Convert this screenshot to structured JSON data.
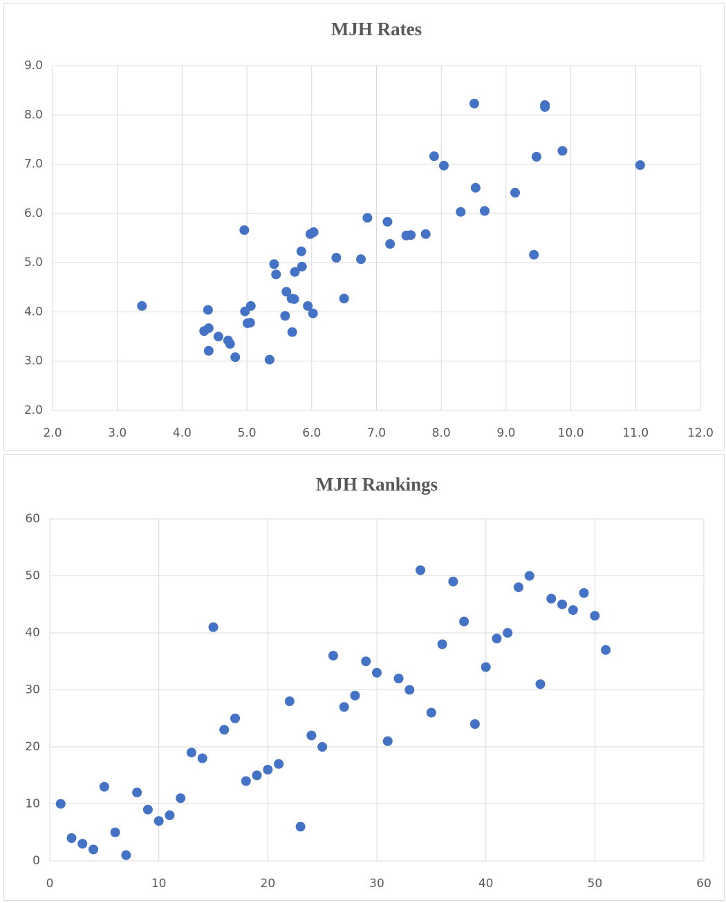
{
  "chart_data": [
    {
      "type": "scatter",
      "title": "MJH Rates",
      "color": "#4472c4",
      "grid": true,
      "xlim": [
        2,
        12
      ],
      "xticks": [
        {
          "value": 2,
          "label": "2.0"
        },
        {
          "value": 3,
          "label": "3.0"
        },
        {
          "value": 4,
          "label": "4.0"
        },
        {
          "value": 5,
          "label": "5.0"
        },
        {
          "value": 6,
          "label": "6.0"
        },
        {
          "value": 7,
          "label": "7.0"
        },
        {
          "value": 8,
          "label": "8.0"
        },
        {
          "value": 9,
          "label": "9.0"
        },
        {
          "value": 10,
          "label": "10.0"
        },
        {
          "value": 11,
          "label": "11.0"
        },
        {
          "value": 12,
          "label": "12.0"
        }
      ],
      "ylim": [
        2,
        9
      ],
      "yticks": [
        {
          "value": 2,
          "label": "2.0"
        },
        {
          "value": 3,
          "label": "3.0"
        },
        {
          "value": 4,
          "label": "4.0"
        },
        {
          "value": 5,
          "label": "5.0"
        },
        {
          "value": 6,
          "label": "6.0"
        },
        {
          "value": 7,
          "label": "7.0"
        },
        {
          "value": 8,
          "label": "8.0"
        },
        {
          "value": 9,
          "label": "9.0"
        }
      ],
      "x": [
        3.38,
        4.4,
        4.34,
        4.41,
        4.41,
        4.56,
        4.71,
        4.74,
        4.82,
        4.96,
        4.97,
        5.01,
        5.05,
        5.06,
        5.35,
        5.42,
        5.45,
        5.59,
        5.61,
        5.69,
        5.73,
        5.7,
        5.74,
        5.84,
        5.85,
        5.94,
        5.98,
        6.03,
        6.02,
        6.38,
        6.5,
        6.76,
        6.86,
        7.17,
        7.21,
        7.46,
        7.53,
        7.76,
        7.89,
        8.04,
        8.3,
        8.51,
        8.53,
        8.67,
        9.14,
        9.43,
        9.47,
        9.6,
        9.6,
        9.87,
        11.07
      ],
      "values": [
        4.12,
        4.04,
        3.61,
        3.67,
        3.21,
        3.5,
        3.42,
        3.35,
        3.08,
        5.66,
        4.01,
        3.77,
        3.78,
        4.12,
        3.03,
        4.97,
        4.76,
        3.92,
        4.41,
        4.27,
        4.26,
        3.59,
        4.81,
        5.23,
        4.92,
        4.12,
        5.58,
        5.62,
        3.97,
        5.1,
        4.27,
        5.07,
        5.91,
        5.83,
        5.38,
        5.55,
        5.56,
        5.58,
        7.16,
        6.97,
        6.03,
        8.23,
        6.52,
        6.05,
        6.42,
        5.16,
        7.15,
        8.2,
        8.16,
        7.27,
        6.98
      ]
    },
    {
      "type": "scatter",
      "title": "MJH Rankings",
      "color": "#4472c4",
      "grid": true,
      "xlim": [
        0,
        60
      ],
      "xticks": [
        0,
        10,
        20,
        30,
        40,
        50,
        60
      ],
      "ylim": [
        0,
        60
      ],
      "yticks": [
        0,
        10,
        20,
        30,
        40,
        50,
        60
      ],
      "x": [
        1,
        2,
        3,
        4,
        5,
        6,
        7,
        8,
        9,
        10,
        11,
        12,
        13,
        14,
        15,
        16,
        17,
        18,
        19,
        20,
        21,
        22,
        23,
        24,
        25,
        26,
        27,
        28,
        29,
        30,
        31,
        32,
        33,
        34,
        35,
        36,
        37,
        38,
        39,
        40,
        41,
        42,
        43,
        44,
        45,
        46,
        47,
        48,
        49,
        50,
        51
      ],
      "values": [
        10,
        4,
        3,
        2,
        13,
        5,
        1,
        12,
        9,
        7,
        8,
        11,
        19,
        18,
        41,
        23,
        25,
        14,
        15,
        16,
        17,
        28,
        6,
        22,
        20,
        36,
        27,
        29,
        35,
        33,
        21,
        32,
        30,
        51,
        26,
        38,
        49,
        42,
        24,
        34,
        39,
        40,
        48,
        50,
        31,
        46,
        45,
        44,
        47,
        43,
        37
      ]
    }
  ]
}
